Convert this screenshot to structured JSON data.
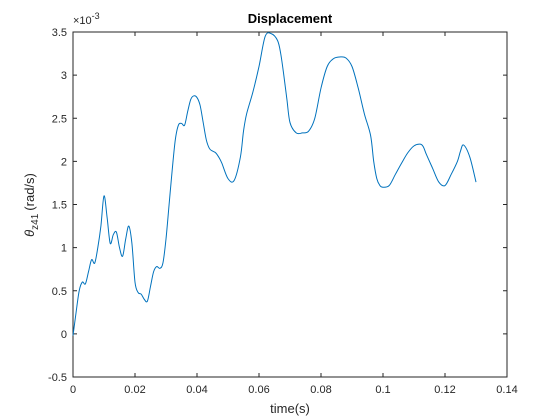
{
  "chart_data": {
    "type": "line",
    "title": "Displacement",
    "xlabel": "time(s)",
    "ylabel": {
      "symbol": "θ",
      "subscript": "z41",
      "unit": "(rad/s)"
    },
    "y_multiplier": {
      "base": "×10",
      "exponent": "-3"
    },
    "xlim": [
      0,
      0.14
    ],
    "ylim": [
      -0.5,
      3.5
    ],
    "x_ticks": [
      "0",
      "0.02",
      "0.04",
      "0.06",
      "0.08",
      "0.1",
      "0.12",
      "0.14"
    ],
    "y_ticks": [
      "-0.5",
      "0",
      "0.5",
      "1",
      "1.5",
      "2",
      "2.5",
      "3",
      "3.5"
    ],
    "grid": false,
    "colors": {
      "line": "#0072bd",
      "axis": "#262626"
    },
    "series": [
      {
        "x": [
          0,
          0.001,
          0.002,
          0.003,
          0.004,
          0.005,
          0.006,
          0.007,
          0.008,
          0.009,
          0.01,
          0.011,
          0.012,
          0.013,
          0.014,
          0.015,
          0.016,
          0.017,
          0.018,
          0.019,
          0.02,
          0.021,
          0.022,
          0.023,
          0.024,
          0.025,
          0.026,
          0.027,
          0.028,
          0.029,
          0.03,
          0.031,
          0.032,
          0.033,
          0.034,
          0.035,
          0.036,
          0.037,
          0.038,
          0.039,
          0.04,
          0.041,
          0.042,
          0.043,
          0.044,
          0.045,
          0.046,
          0.047,
          0.048,
          0.05,
          0.052,
          0.054,
          0.055,
          0.056,
          0.058,
          0.06,
          0.062,
          0.064,
          0.066,
          0.067,
          0.068,
          0.069,
          0.07,
          0.072,
          0.074,
          0.076,
          0.078,
          0.08,
          0.082,
          0.084,
          0.086,
          0.088,
          0.09,
          0.092,
          0.094,
          0.096,
          0.097,
          0.098,
          0.099,
          0.1,
          0.102,
          0.104,
          0.106,
          0.108,
          0.11,
          0.112,
          0.113,
          0.114,
          0.116,
          0.118,
          0.12,
          0.122,
          0.124,
          0.125,
          0.126,
          0.128,
          0.13
        ],
        "y": [
          -0.02,
          0.25,
          0.5,
          0.6,
          0.58,
          0.72,
          0.86,
          0.82,
          1.0,
          1.25,
          1.6,
          1.35,
          1.05,
          1.15,
          1.18,
          1.0,
          0.9,
          1.1,
          1.25,
          1.05,
          0.6,
          0.48,
          0.46,
          0.4,
          0.38,
          0.55,
          0.72,
          0.78,
          0.76,
          0.82,
          1.1,
          1.5,
          1.9,
          2.25,
          2.42,
          2.44,
          2.42,
          2.58,
          2.72,
          2.76,
          2.74,
          2.65,
          2.45,
          2.25,
          2.15,
          2.12,
          2.1,
          2.05,
          1.98,
          1.8,
          1.78,
          2.05,
          2.35,
          2.55,
          2.8,
          3.1,
          3.45,
          3.48,
          3.4,
          3.25,
          3.0,
          2.72,
          2.45,
          2.33,
          2.33,
          2.35,
          2.5,
          2.85,
          3.1,
          3.19,
          3.21,
          3.2,
          3.1,
          2.85,
          2.55,
          2.3,
          2.0,
          1.8,
          1.72,
          1.7,
          1.72,
          1.85,
          1.98,
          2.1,
          2.18,
          2.2,
          2.17,
          2.08,
          1.92,
          1.76,
          1.72,
          1.85,
          2.0,
          2.12,
          2.19,
          2.05,
          1.76
        ]
      }
    ]
  }
}
